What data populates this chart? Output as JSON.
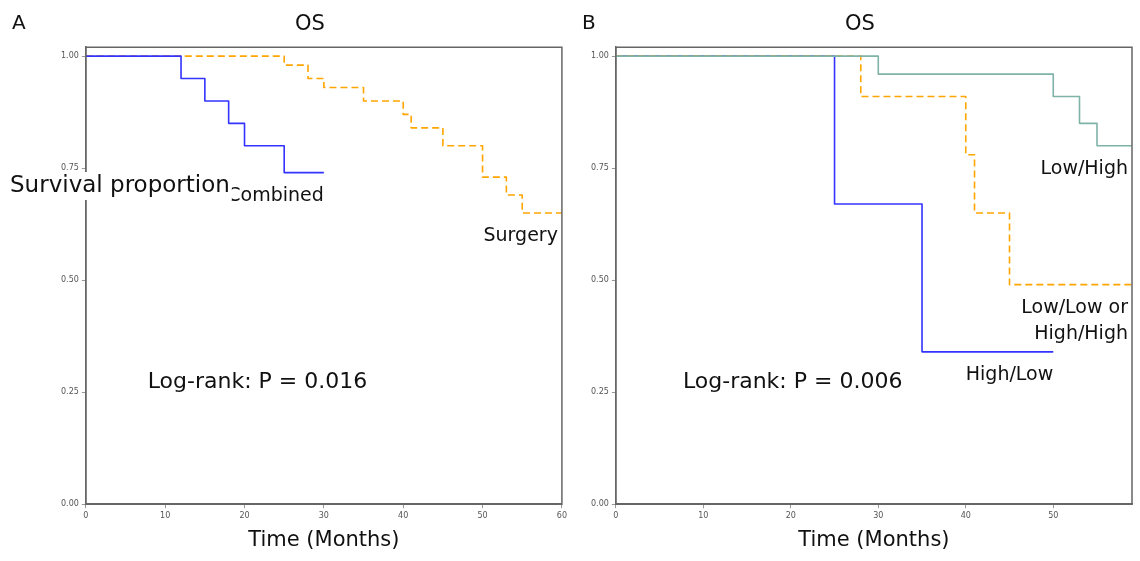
{
  "chart_data": [
    {
      "type": "step",
      "title": "OS",
      "xlabel": "Time (Months)",
      "ylabel": "Survival proportion",
      "annotations": [
        "A",
        "Log-rank: P = 0.016"
      ],
      "xlim": [
        0,
        60
      ],
      "xticks": [
        0,
        10,
        20,
        30,
        40,
        50,
        60
      ],
      "ylim": [
        0,
        1.02
      ],
      "yticks": [
        {
          "value": 0,
          "label": "0.00"
        },
        {
          "value": 0.25,
          "label": "0.25"
        },
        {
          "value": 0.5,
          "label": "0.50"
        },
        {
          "value": 0.75,
          "label": "0.75"
        },
        {
          "value": 1,
          "label": "1.00"
        }
      ],
      "grid": false,
      "legend": false,
      "series": [
        {
          "name": "Combined",
          "color": "#3333ff",
          "line_style": "solid",
          "x": [
            0,
            12,
            15,
            18,
            20,
            25,
            30
          ],
          "values": [
            1,
            0.95,
            0.9,
            0.85,
            0.8,
            0.74,
            0.74
          ]
        },
        {
          "name": "Surgery",
          "color": "#ffa500",
          "line_style": "dashed",
          "x": [
            0,
            25,
            28,
            30,
            35,
            40,
            41,
            45,
            50,
            53,
            55,
            60
          ],
          "values": [
            1,
            0.98,
            0.95,
            0.93,
            0.9,
            0.87,
            0.84,
            0.8,
            0.73,
            0.69,
            0.65,
            0.65
          ]
        }
      ]
    },
    {
      "type": "step",
      "title": "OS",
      "xlabel": "Time (Months)",
      "annotations": [
        "B",
        "Log-rank: P = 0.006"
      ],
      "xlim": [
        0,
        59
      ],
      "xticks": [
        0,
        10,
        20,
        30,
        40,
        50
      ],
      "ylim": [
        0,
        1.02
      ],
      "yticks": [
        {
          "value": 0,
          "label": "0.00"
        },
        {
          "value": 0.25,
          "label": "0.25"
        },
        {
          "value": 0.5,
          "label": "0.50"
        },
        {
          "value": 0.75,
          "label": "0.75"
        },
        {
          "value": 1,
          "label": "1.00"
        }
      ],
      "grid": false,
      "legend": false,
      "series": [
        {
          "name": "Low/High",
          "color": "#7fb3a8",
          "line_style": "solid",
          "x": [
            0,
            30,
            50,
            53,
            55,
            59
          ],
          "values": [
            1,
            0.96,
            0.91,
            0.85,
            0.8,
            0.8
          ]
        },
        {
          "name": "Low/Low or High/High",
          "color": "#ffa500",
          "line_style": "dashed",
          "x": [
            0,
            28,
            40,
            41,
            45,
            59
          ],
          "values": [
            1,
            0.91,
            0.78,
            0.65,
            0.49,
            0.49
          ]
        },
        {
          "name": "High/Low",
          "color": "#3333ff",
          "line_style": "solid",
          "x": [
            0,
            25,
            35,
            50
          ],
          "values": [
            1,
            0.67,
            0.34,
            0.34
          ]
        }
      ]
    }
  ]
}
